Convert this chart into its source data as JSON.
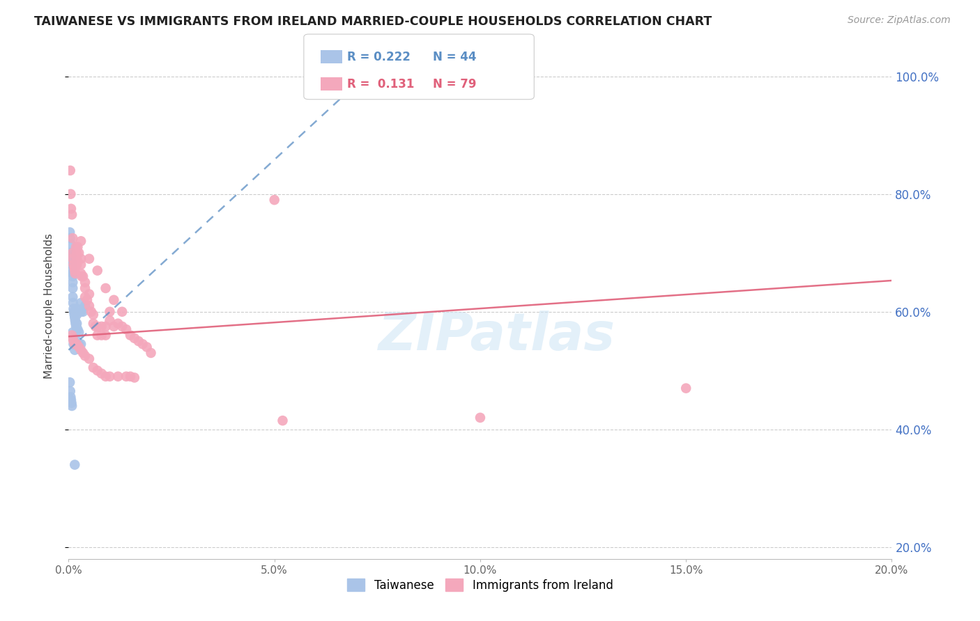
{
  "title": "TAIWANESE VS IMMIGRANTS FROM IRELAND MARRIED-COUPLE HOUSEHOLDS CORRELATION CHART",
  "source": "Source: ZipAtlas.com",
  "ylabel": "Married-couple Households",
  "blue_color": "#aac4e8",
  "pink_color": "#f4a8bc",
  "blue_line_color": "#5b8ec4",
  "pink_line_color": "#e0607a",
  "watermark": "ZIPatlas",
  "xlim": [
    0.0,
    0.2
  ],
  "ylim": [
    0.18,
    1.04
  ],
  "tw_trend_x0": 0.0,
  "tw_trend_y0": 0.535,
  "tw_trend_x1": 0.075,
  "tw_trend_y1": 1.02,
  "ir_trend_x0": 0.0,
  "ir_trend_y0": 0.558,
  "ir_trend_x1": 0.2,
  "ir_trend_y1": 0.653,
  "taiwanese_x": [
    0.0003,
    0.0004,
    0.0005,
    0.0005,
    0.0006,
    0.0007,
    0.0008,
    0.0008,
    0.0009,
    0.001,
    0.001,
    0.001,
    0.001,
    0.0011,
    0.0012,
    0.0013,
    0.0014,
    0.0015,
    0.0016,
    0.0017,
    0.0018,
    0.002,
    0.002,
    0.002,
    0.0022,
    0.0025,
    0.003,
    0.003,
    0.0035,
    0.004,
    0.0003,
    0.0004,
    0.0005,
    0.0006,
    0.0007,
    0.0008,
    0.001,
    0.001,
    0.0012,
    0.0015,
    0.002,
    0.0025,
    0.003,
    0.0015
  ],
  "taiwanese_y": [
    0.735,
    0.725,
    0.715,
    0.7,
    0.695,
    0.685,
    0.68,
    0.67,
    0.665,
    0.66,
    0.65,
    0.64,
    0.625,
    0.615,
    0.605,
    0.6,
    0.595,
    0.59,
    0.585,
    0.58,
    0.575,
    0.605,
    0.595,
    0.58,
    0.57,
    0.565,
    0.615,
    0.6,
    0.6,
    0.61,
    0.48,
    0.465,
    0.455,
    0.45,
    0.445,
    0.44,
    0.565,
    0.555,
    0.545,
    0.535,
    0.55,
    0.545,
    0.545,
    0.34
  ],
  "ireland_x": [
    0.0004,
    0.0005,
    0.0006,
    0.0008,
    0.001,
    0.001,
    0.001,
    0.0012,
    0.0014,
    0.0015,
    0.0016,
    0.0018,
    0.002,
    0.002,
    0.002,
    0.0022,
    0.0025,
    0.003,
    0.003,
    0.003,
    0.0032,
    0.0035,
    0.004,
    0.004,
    0.004,
    0.0045,
    0.005,
    0.005,
    0.0055,
    0.006,
    0.006,
    0.0065,
    0.007,
    0.007,
    0.008,
    0.008,
    0.009,
    0.009,
    0.01,
    0.01,
    0.011,
    0.012,
    0.013,
    0.014,
    0.015,
    0.016,
    0.017,
    0.018,
    0.019,
    0.02,
    0.0008,
    0.001,
    0.0012,
    0.0015,
    0.002,
    0.0025,
    0.003,
    0.0035,
    0.004,
    0.005,
    0.006,
    0.007,
    0.008,
    0.009,
    0.01,
    0.012,
    0.014,
    0.016,
    0.05,
    0.052,
    0.1,
    0.15,
    0.003,
    0.005,
    0.007,
    0.009,
    0.011,
    0.013,
    0.015
  ],
  "ireland_y": [
    0.84,
    0.8,
    0.775,
    0.765,
    0.7,
    0.725,
    0.69,
    0.68,
    0.675,
    0.67,
    0.665,
    0.71,
    0.7,
    0.69,
    0.68,
    0.71,
    0.7,
    0.69,
    0.68,
    0.665,
    0.66,
    0.66,
    0.65,
    0.64,
    0.625,
    0.62,
    0.63,
    0.61,
    0.6,
    0.595,
    0.58,
    0.575,
    0.575,
    0.56,
    0.575,
    0.56,
    0.575,
    0.56,
    0.6,
    0.585,
    0.575,
    0.58,
    0.575,
    0.57,
    0.56,
    0.555,
    0.55,
    0.545,
    0.54,
    0.53,
    0.56,
    0.555,
    0.55,
    0.545,
    0.545,
    0.54,
    0.535,
    0.53,
    0.525,
    0.52,
    0.505,
    0.5,
    0.495,
    0.49,
    0.49,
    0.49,
    0.49,
    0.488,
    0.79,
    0.415,
    0.42,
    0.47,
    0.72,
    0.69,
    0.67,
    0.64,
    0.62,
    0.6,
    0.49
  ]
}
